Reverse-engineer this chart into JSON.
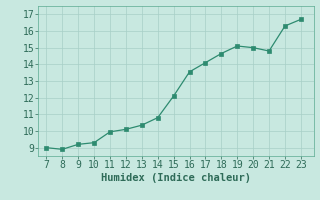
{
  "x": [
    7,
    8,
    9,
    10,
    11,
    12,
    13,
    14,
    15,
    16,
    17,
    18,
    19,
    20,
    21,
    22,
    23
  ],
  "y": [
    9.0,
    8.9,
    9.2,
    9.3,
    9.95,
    10.1,
    10.35,
    10.8,
    12.1,
    13.55,
    14.1,
    14.65,
    15.1,
    15.0,
    14.8,
    16.3,
    16.7
  ],
  "line_color": "#2e8b70",
  "marker_color": "#2e8b70",
  "bg_color": "#c8e8e0",
  "grid_color": "#a8cfc7",
  "xlabel": "Humidex (Indice chaleur)",
  "xlabel_fontsize": 7.5,
  "tick_fontsize": 7,
  "xlim": [
    6.5,
    23.8
  ],
  "ylim": [
    8.5,
    17.5
  ],
  "xticks": [
    7,
    8,
    9,
    10,
    11,
    12,
    13,
    14,
    15,
    16,
    17,
    18,
    19,
    20,
    21,
    22,
    23
  ],
  "yticks": [
    9,
    10,
    11,
    12,
    13,
    14,
    15,
    16,
    17
  ]
}
